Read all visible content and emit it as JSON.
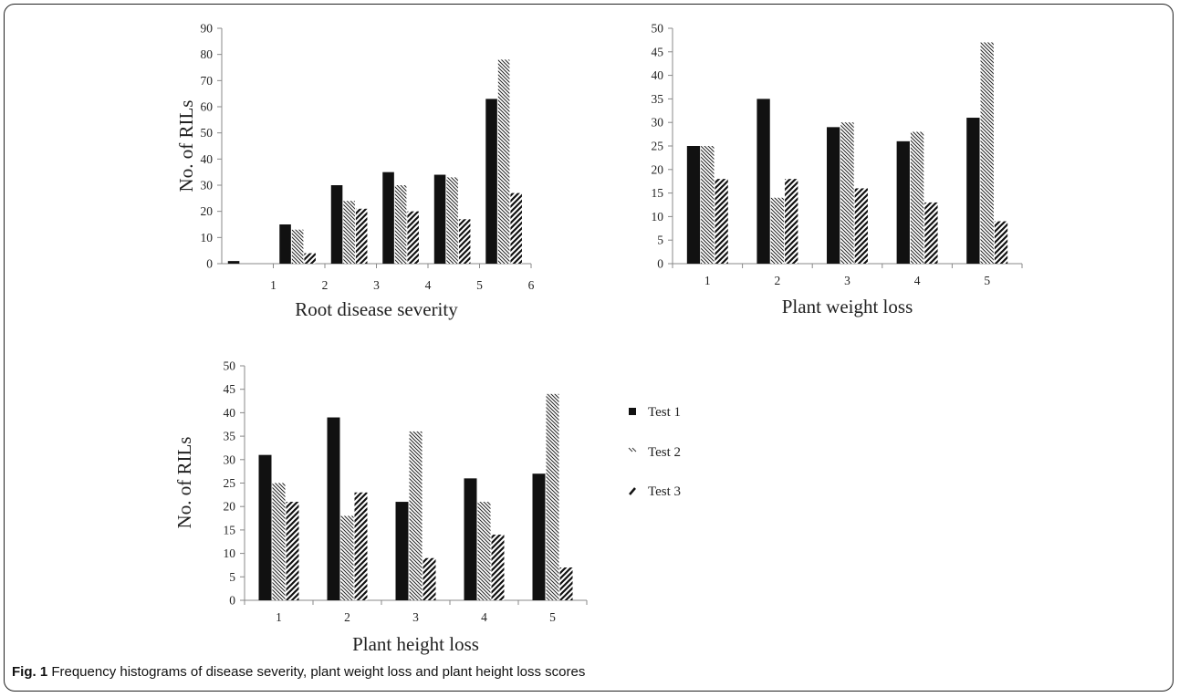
{
  "caption": {
    "label": "Fig. 1",
    "text": "Frequency histograms of disease severity, plant weight loss and plant height loss scores"
  },
  "legend": {
    "items": [
      "Test 1",
      "Test 2",
      "Test 3"
    ]
  },
  "chart_data": [
    {
      "type": "bar",
      "xlabel": "Root disease severity",
      "ylabel": "No. of RILs",
      "ylim": [
        0,
        90
      ],
      "ytick_step": 10,
      "xlim": [
        0,
        6
      ],
      "xticks": [
        1,
        2,
        3,
        4,
        5,
        6
      ],
      "categories": [
        0,
        1,
        2,
        3,
        4,
        5
      ],
      "grid": false,
      "series": [
        {
          "name": "Test 1",
          "values": [
            1,
            15,
            30,
            35,
            34,
            63
          ]
        },
        {
          "name": "Test 2",
          "values": [
            0,
            13,
            24,
            30,
            33,
            78
          ]
        },
        {
          "name": "Test 3",
          "values": [
            0,
            4,
            21,
            20,
            17,
            27
          ]
        }
      ]
    },
    {
      "type": "bar",
      "xlabel": "Plant weight loss",
      "ylabel": "",
      "ylim": [
        0,
        50
      ],
      "ytick_step": 5,
      "categories": [
        "1",
        "2",
        "3",
        "4",
        "5"
      ],
      "grid": false,
      "series": [
        {
          "name": "Test 1",
          "values": [
            25,
            35,
            29,
            26,
            31
          ]
        },
        {
          "name": "Test 2",
          "values": [
            25,
            14,
            30,
            28,
            47
          ]
        },
        {
          "name": "Test 3",
          "values": [
            18,
            18,
            16,
            13,
            9
          ]
        }
      ]
    },
    {
      "type": "bar",
      "xlabel": "Plant height loss",
      "ylabel": "No. of RILs",
      "ylim": [
        0,
        50
      ],
      "ytick_step": 5,
      "categories": [
        "1",
        "2",
        "3",
        "4",
        "5"
      ],
      "grid": false,
      "series": [
        {
          "name": "Test 1",
          "values": [
            31,
            39,
            21,
            26,
            27
          ]
        },
        {
          "name": "Test 2",
          "values": [
            25,
            18,
            36,
            21,
            44
          ]
        },
        {
          "name": "Test 3",
          "values": [
            21,
            23,
            9,
            14,
            7
          ]
        }
      ]
    }
  ]
}
